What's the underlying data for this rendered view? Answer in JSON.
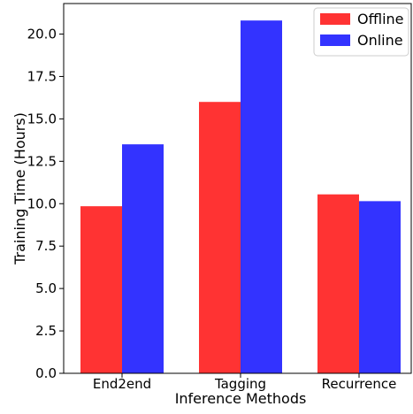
{
  "chart_data": {
    "type": "bar",
    "title": "",
    "xlabel": "Inference Methods",
    "ylabel": "Training Time (Hours)",
    "categories": [
      "End2end",
      "Tagging",
      "Recurrence"
    ],
    "series": [
      {
        "name": "Offline",
        "color": "#ff3333",
        "values": [
          9.85,
          16.0,
          10.55
        ]
      },
      {
        "name": "Online",
        "color": "#3333ff",
        "values": [
          13.5,
          20.8,
          10.15
        ]
      }
    ],
    "ylim": [
      0,
      21.8
    ],
    "yticks": [
      "0.0",
      "2.5",
      "5.0",
      "7.5",
      "10.0",
      "12.5",
      "15.0",
      "17.5",
      "20.0"
    ],
    "legend_position": "top-right",
    "grid": false
  }
}
